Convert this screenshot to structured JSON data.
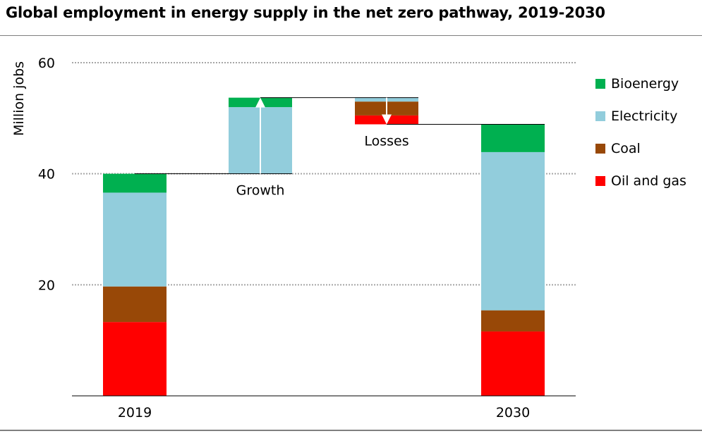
{
  "title": "Global employment in energy supply in the net zero pathway, 2019-2030",
  "colors": {
    "Bioenergy": "#00b050",
    "Electricity": "#92cddc",
    "Coal": "#984807",
    "Oil and gas": "#ff0000",
    "grid": "#a6a6a6",
    "axis": "#000000"
  },
  "chart_data": {
    "type": "bar",
    "subtype": "waterfall-stacked",
    "title": "Global employment in energy supply in the net zero pathway, 2019-2030",
    "ylabel": "Million jobs",
    "xlabel": "",
    "ylim": [
      0,
      60
    ],
    "yticks": [
      20,
      40,
      60
    ],
    "grid": true,
    "legend_position": "right",
    "categories": [
      "2019",
      "Growth",
      "Losses",
      "2030"
    ],
    "legend": [
      "Bioenergy",
      "Electricity",
      "Coal",
      "Oil and gas"
    ],
    "bars": [
      {
        "label": "2019",
        "type": "total",
        "segments": [
          {
            "series": "Oil and gas",
            "from": 0,
            "to": 13.3
          },
          {
            "series": "Coal",
            "from": 13.3,
            "to": 19.7
          },
          {
            "series": "Electricity",
            "from": 19.7,
            "to": 36.6
          },
          {
            "series": "Bioenergy",
            "from": 36.6,
            "to": 40.0
          }
        ]
      },
      {
        "label": "Growth",
        "type": "increase",
        "segments": [
          {
            "series": "Electricity",
            "from": 40.0,
            "to": 52.0
          },
          {
            "series": "Bioenergy",
            "from": 52.0,
            "to": 53.7
          }
        ]
      },
      {
        "label": "Losses",
        "type": "decrease",
        "segments": [
          {
            "series": "Oil and gas",
            "from": 48.9,
            "to": 50.5
          },
          {
            "series": "Coal",
            "from": 50.5,
            "to": 53.0
          },
          {
            "series": "Electricity",
            "from": 53.0,
            "to": 53.7
          }
        ]
      },
      {
        "label": "2030",
        "type": "total",
        "segments": [
          {
            "series": "Oil and gas",
            "from": 0,
            "to": 11.6
          },
          {
            "series": "Coal",
            "from": 11.6,
            "to": 15.4
          },
          {
            "series": "Electricity",
            "from": 15.4,
            "to": 43.9
          },
          {
            "series": "Bioenergy",
            "from": 43.9,
            "to": 48.9
          }
        ]
      }
    ],
    "x_labels": [
      "2019",
      "2030"
    ],
    "annotations": [
      {
        "text": "Growth",
        "bar": "Growth",
        "placement": "below"
      },
      {
        "text": "Losses",
        "bar": "Losses",
        "placement": "below"
      }
    ],
    "connectors": [
      {
        "from": "2019",
        "to": "Growth",
        "y": 40.0
      },
      {
        "from": "Growth",
        "to": "Losses",
        "y": 53.7
      },
      {
        "from": "Losses",
        "to": "2030",
        "y": 48.9
      }
    ]
  }
}
